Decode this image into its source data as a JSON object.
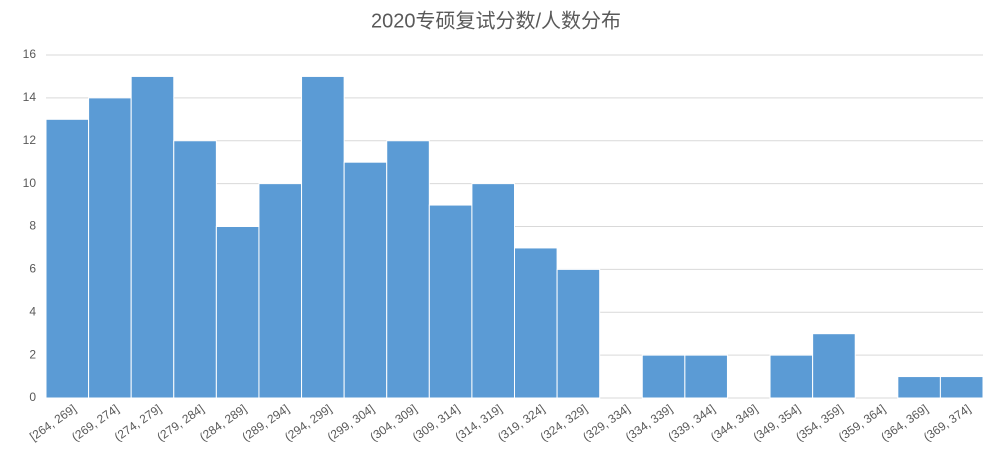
{
  "chart_data": {
    "type": "bar",
    "title": "2020专硕复试分数/人数分布",
    "categories": [
      "[264, 269]",
      "(269, 274]",
      "(274, 279]",
      "(279, 284]",
      "(284, 289]",
      "(289, 294]",
      "(294, 299]",
      "(299, 304]",
      "(304, 309]",
      "(309, 314]",
      "(314, 319]",
      "(319, 324]",
      "(324, 329]",
      "(329, 334]",
      "(334, 339]",
      "(339, 344]",
      "(344, 349]",
      "(349, 354]",
      "(354, 359]",
      "(359, 364]",
      "(364, 369]",
      "(369, 374]"
    ],
    "values": [
      13,
      14,
      15,
      12,
      8,
      10,
      15,
      11,
      12,
      9,
      10,
      7,
      6,
      0,
      2,
      2,
      0,
      2,
      3,
      0,
      1,
      1
    ],
    "color": "#5b9bd5",
    "ylim": [
      0,
      16
    ],
    "yticks": [
      0,
      2,
      4,
      6,
      8,
      10,
      12,
      14,
      16
    ],
    "grid": true
  }
}
